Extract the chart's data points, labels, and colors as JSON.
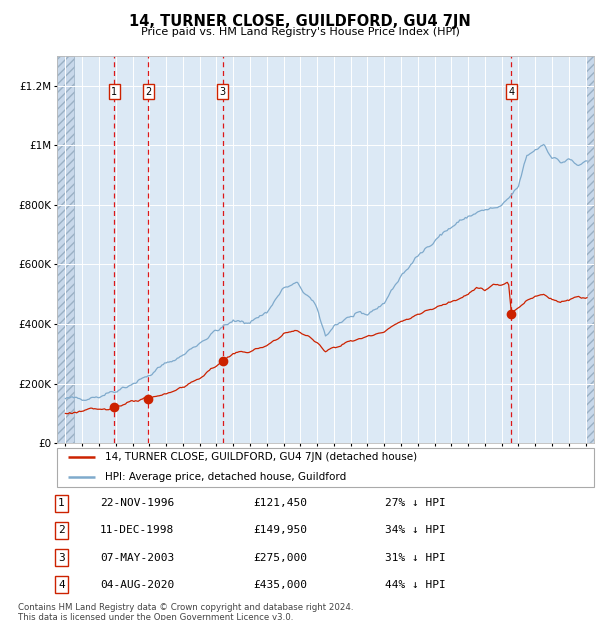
{
  "title": "14, TURNER CLOSE, GUILDFORD, GU4 7JN",
  "subtitle": "Price paid vs. HM Land Registry's House Price Index (HPI)",
  "background_plot": "#dce9f5",
  "background_hatched": "#c8d8ea",
  "hpi_color": "#7faacc",
  "price_color": "#cc2200",
  "transactions": [
    {
      "num": 1,
      "date_label": "22-NOV-1996",
      "date_x": 1996.9,
      "price": 121450,
      "pct": "27% ↓ HPI"
    },
    {
      "num": 2,
      "date_label": "11-DEC-1998",
      "date_x": 1998.95,
      "price": 149950,
      "pct": "34% ↓ HPI"
    },
    {
      "num": 3,
      "date_label": "07-MAY-2003",
      "date_x": 2003.37,
      "price": 275000,
      "pct": "31% ↓ HPI"
    },
    {
      "num": 4,
      "date_label": "04-AUG-2020",
      "date_x": 2020.58,
      "price": 435000,
      "pct": "44% ↓ HPI"
    }
  ],
  "legend_line1": "14, TURNER CLOSE, GUILDFORD, GU4 7JN (detached house)",
  "legend_line2": "HPI: Average price, detached house, Guildford",
  "table_rows": [
    {
      "num": "1",
      "date": "22-NOV-1996",
      "price": "£121,450",
      "pct": "27% ↓ HPI"
    },
    {
      "num": "2",
      "date": "11-DEC-1998",
      "price": "£149,950",
      "pct": "34% ↓ HPI"
    },
    {
      "num": "3",
      "date": "07-MAY-2003",
      "price": "£275,000",
      "pct": "31% ↓ HPI"
    },
    {
      "num": "4",
      "date": "04-AUG-2020",
      "price": "£435,000",
      "pct": "44% ↓ HPI"
    }
  ],
  "footer": "Contains HM Land Registry data © Crown copyright and database right 2024.\nThis data is licensed under the Open Government Licence v3.0.",
  "ylim": [
    0,
    1300000
  ],
  "xlim_start": 1993.5,
  "xlim_end": 2025.5,
  "hatch_end": 1994.5,
  "hpi_anchors_x": [
    1994.0,
    1995.0,
    1996.0,
    1997.0,
    1998.0,
    1999.0,
    2000.0,
    2001.0,
    2002.0,
    2003.0,
    2004.0,
    2005.0,
    2006.0,
    2007.0,
    2007.8,
    2008.5,
    2009.0,
    2009.5,
    2010.0,
    2011.0,
    2012.0,
    2013.0,
    2014.0,
    2015.0,
    2016.0,
    2017.0,
    2018.0,
    2019.0,
    2020.0,
    2021.0,
    2021.5,
    2022.0,
    2022.5,
    2023.0,
    2023.5,
    2024.0,
    2024.5,
    2025.0
  ],
  "hpi_anchors_y": [
    148000,
    152000,
    158000,
    178000,
    200000,
    228000,
    268000,
    295000,
    338000,
    378000,
    408000,
    408000,
    440000,
    520000,
    535000,
    490000,
    450000,
    360000,
    395000,
    425000,
    432000,
    472000,
    562000,
    625000,
    685000,
    725000,
    762000,
    782000,
    792000,
    862000,
    965000,
    985000,
    1005000,
    962000,
    942000,
    952000,
    932000,
    942000
  ],
  "red_anchors_x": [
    1994.0,
    1995.0,
    1996.0,
    1996.9,
    1997.5,
    1998.0,
    1998.95,
    1999.5,
    2000.0,
    2001.0,
    2002.0,
    2003.0,
    2003.37,
    2004.0,
    2005.0,
    2006.0,
    2007.0,
    2007.8,
    2008.5,
    2009.0,
    2009.5,
    2010.0,
    2011.0,
    2012.0,
    2013.0,
    2014.0,
    2015.0,
    2016.0,
    2017.0,
    2018.0,
    2018.5,
    2019.0,
    2019.5,
    2020.0,
    2020.4,
    2020.58,
    2020.75,
    2021.0,
    2021.5,
    2022.0,
    2022.5,
    2023.0,
    2023.5,
    2024.0,
    2024.5,
    2025.0
  ],
  "red_anchors_y": [
    100000,
    108000,
    115000,
    121450,
    132000,
    138000,
    149950,
    158000,
    168000,
    188000,
    218000,
    262000,
    275000,
    302000,
    308000,
    325000,
    368000,
    378000,
    358000,
    335000,
    312000,
    322000,
    342000,
    358000,
    378000,
    408000,
    432000,
    452000,
    478000,
    502000,
    522000,
    512000,
    532000,
    528000,
    542000,
    435000,
    448000,
    458000,
    478000,
    492000,
    502000,
    482000,
    477000,
    482000,
    492000,
    488000
  ]
}
